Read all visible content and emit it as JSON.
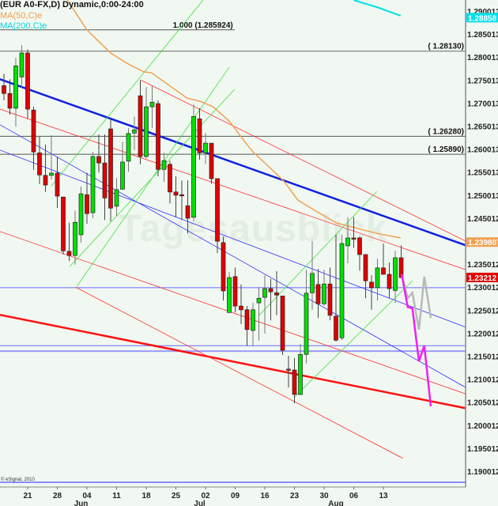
{
  "header": {
    "title": "(EUR A0-FX,D) Dynamic,0:00-24:00",
    "ma50": "MA(50,C)e",
    "ma200": "MA(200,C)e"
  },
  "copyright": "© eSignal, 2010",
  "watermark": "Tagesausblick",
  "chart_data": {
    "type": "candlestick",
    "symbol": "EUR A0-FX",
    "interval": "D",
    "ylim": [
      1.1865,
      1.2924
    ],
    "grid": false,
    "colors": {
      "up": "#00e000",
      "down": "#e00000",
      "background": "#f1f8f1",
      "ma50": "#f0a050",
      "ma200": "#00e0e8"
    },
    "y_ticks": [
      "1.290013",
      "1.285013",
      "1.280013",
      "1.275013",
      "1.270013",
      "1.265013",
      "1.260013",
      "1.255013",
      "1.250013",
      "1.245012",
      "1.235012",
      "1.230012",
      "1.225012",
      "1.220012",
      "1.215012",
      "1.210012",
      "1.205012",
      "1.200012",
      "1.195012",
      "1.190012"
    ],
    "x_ticks": [
      {
        "label": "21",
        "bar": 4
      },
      {
        "label": "28",
        "bar": 9
      },
      {
        "label": "04",
        "bar": 14
      },
      {
        "label": "11",
        "bar": 19
      },
      {
        "label": "18",
        "bar": 24
      },
      {
        "label": "25",
        "bar": 29
      },
      {
        "label": "02",
        "bar": 34
      },
      {
        "label": "09",
        "bar": 39
      },
      {
        "label": "16",
        "bar": 44
      },
      {
        "label": "23",
        "bar": 49
      },
      {
        "label": "30",
        "bar": 54
      },
      {
        "label": "06",
        "bar": 59
      },
      {
        "label": "13",
        "bar": 64
      }
    ],
    "month_labels": [
      {
        "label": "Jun",
        "bar": 13
      },
      {
        "label": "Jul",
        "bar": 33
      },
      {
        "label": "Aug",
        "bar": 56
      }
    ],
    "price_labels": [
      {
        "text": "1.28858",
        "price": 1.28858,
        "color": "#00e0e8",
        "series": "MA(200,C)e"
      },
      {
        "text": "1.239807",
        "price": 1.239807,
        "color": "#f0a050",
        "series": "MA(50,C)e"
      },
      {
        "text": "1.23212",
        "price": 1.23212,
        "color": "#e00000",
        "series": "last"
      }
    ],
    "candles": [
      [
        1.2738,
        1.2764,
        1.2706,
        1.2721
      ],
      [
        1.2721,
        1.2752,
        1.2675,
        1.2689
      ],
      [
        1.2689,
        1.2799,
        1.2649,
        1.2781
      ],
      [
        1.2757,
        1.2826,
        1.2732,
        1.2809
      ],
      [
        1.2809,
        1.2817,
        1.2666,
        1.2687
      ],
      [
        1.2685,
        1.2692,
        1.2555,
        1.2594
      ],
      [
        1.2592,
        1.2627,
        1.2524,
        1.2544
      ],
      [
        1.2543,
        1.261,
        1.2507,
        1.2522
      ],
      [
        1.2543,
        1.263,
        1.2534,
        1.2548
      ],
      [
        1.2548,
        1.2584,
        1.2472,
        1.2498
      ],
      [
        1.2496,
        1.2496,
        1.2371,
        1.2379
      ],
      [
        1.2378,
        1.244,
        1.2357,
        1.2369
      ],
      [
        1.2369,
        1.2467,
        1.2349,
        1.2441
      ],
      [
        1.2414,
        1.2519,
        1.2397,
        1.2503
      ],
      [
        1.2501,
        1.2549,
        1.2438,
        1.246
      ],
      [
        1.2462,
        1.2594,
        1.245,
        1.2584
      ],
      [
        1.2584,
        1.2632,
        1.2549,
        1.257
      ],
      [
        1.257,
        1.2632,
        1.2446,
        1.2494
      ],
      [
        1.2644,
        1.2666,
        1.2443,
        1.2472
      ],
      [
        1.2476,
        1.2537,
        1.2455,
        1.2512
      ],
      [
        1.2513,
        1.2616,
        1.2512,
        1.2572
      ],
      [
        1.2574,
        1.2646,
        1.2551,
        1.2634
      ],
      [
        1.2635,
        1.2671,
        1.2598,
        1.2642
      ],
      [
        1.2716,
        1.275,
        1.2567,
        1.2584
      ],
      [
        1.2584,
        1.2735,
        1.258,
        1.2692
      ],
      [
        1.2692,
        1.2738,
        1.2646,
        1.2702
      ],
      [
        1.2699,
        1.2706,
        1.2541,
        1.2556
      ],
      [
        1.2556,
        1.2592,
        1.2529,
        1.2575
      ],
      [
        1.2567,
        1.2575,
        1.2482,
        1.2507
      ],
      [
        1.2507,
        1.2541,
        1.2452,
        1.25
      ],
      [
        1.2501,
        1.2532,
        1.2446,
        1.25
      ],
      [
        1.2477,
        1.2532,
        1.2417,
        1.245
      ],
      [
        1.2452,
        1.2697,
        1.2443,
        1.2671
      ],
      [
        1.2666,
        1.2689,
        1.2577,
        1.2592
      ],
      [
        1.2592,
        1.2635,
        1.2568,
        1.2613
      ],
      [
        1.2613,
        1.2613,
        1.2525,
        1.2536
      ],
      [
        1.2536,
        1.2536,
        1.2374,
        1.24
      ],
      [
        1.2397,
        1.241,
        1.2271,
        1.2292
      ],
      [
        1.2245,
        1.2333,
        1.2245,
        1.2321
      ],
      [
        1.2323,
        1.2343,
        1.2245,
        1.2259
      ],
      [
        1.2259,
        1.2306,
        1.222,
        1.2251
      ],
      [
        1.2251,
        1.2259,
        1.2173,
        1.2208
      ],
      [
        1.2206,
        1.2266,
        1.2172,
        1.2251
      ],
      [
        1.2266,
        1.23,
        1.2184,
        1.2276
      ],
      [
        1.2278,
        1.2326,
        1.2199,
        1.2297
      ],
      [
        1.2297,
        1.2318,
        1.2228,
        1.229
      ],
      [
        1.2288,
        1.2335,
        1.2239,
        1.2283
      ],
      [
        1.2281,
        1.2281,
        1.2153,
        1.2163
      ],
      [
        1.2122,
        1.2151,
        1.2082,
        1.2121
      ],
      [
        1.212,
        1.2146,
        1.2048,
        1.2067
      ],
      [
        1.2067,
        1.2177,
        1.2065,
        1.2154
      ],
      [
        1.2154,
        1.2338,
        1.2134,
        1.2287
      ],
      [
        1.2288,
        1.24,
        1.2251,
        1.233
      ],
      [
        1.2306,
        1.234,
        1.2233,
        1.2264
      ],
      [
        1.2264,
        1.2338,
        1.2259,
        1.2307
      ],
      [
        1.2307,
        1.2343,
        1.2228,
        1.2239
      ],
      [
        1.2237,
        1.2414,
        1.2182,
        1.2185
      ],
      [
        1.219,
        1.2414,
        1.2185,
        1.2395
      ],
      [
        1.239,
        1.2452,
        1.2352,
        1.2407
      ],
      [
        1.2407,
        1.2452,
        1.2386,
        1.2406
      ],
      [
        1.2407,
        1.241,
        1.2336,
        1.2371
      ],
      [
        1.2371,
        1.2371,
        1.2276,
        1.2314
      ],
      [
        1.2311,
        1.2326,
        1.2251,
        1.2299
      ],
      [
        1.2299,
        1.2362,
        1.2271,
        1.2342
      ],
      [
        1.2342,
        1.2395,
        1.2328,
        1.2328
      ],
      [
        1.2328,
        1.2354,
        1.2276,
        1.2297
      ],
      [
        1.2293,
        1.2379,
        1.2266,
        1.2364
      ],
      [
        1.2364,
        1.2391,
        1.2321,
        1.2321
      ]
    ],
    "ma50": [
      [
        10.7,
        1.2924
      ],
      [
        14,
        1.2859
      ],
      [
        18,
        1.2809
      ],
      [
        20.7,
        1.2787
      ],
      [
        23.6,
        1.2768
      ],
      [
        24.9,
        1.2766
      ],
      [
        27.7,
        1.274
      ],
      [
        30.9,
        1.2711
      ],
      [
        33.1,
        1.2704
      ],
      [
        35.3,
        1.2692
      ],
      [
        38,
        1.2661
      ],
      [
        40.7,
        1.2615
      ],
      [
        42,
        1.2594
      ],
      [
        46,
        1.2546
      ],
      [
        47.3,
        1.2529
      ],
      [
        49.6,
        1.2489
      ],
      [
        52.7,
        1.2465
      ],
      [
        56,
        1.244
      ],
      [
        59.3,
        1.2429
      ],
      [
        62.9,
        1.2417
      ],
      [
        66.9,
        1.2407
      ]
    ],
    "ma200": [
      [
        59,
        1.2924
      ],
      [
        63.3,
        1.2907
      ],
      [
        66.9,
        1.289
      ]
    ],
    "horizontal_lines": [
      {
        "price": 1.285924,
        "color": "#555555",
        "width": 1,
        "end_bar": 38.9,
        "label": "1.000 (1.285924)"
      },
      {
        "price": 1.2813,
        "color": "#777777",
        "width": 1.2,
        "label": "( 1.28130)"
      },
      {
        "price": 1.2628,
        "color": "#555555",
        "width": 1,
        "label": "( 1.26280)"
      },
      {
        "price": 1.2589,
        "color": "#555555",
        "width": 1,
        "label": "( 1.25890)"
      },
      {
        "price": 1.2299,
        "color": "#6a6aff",
        "width": 1,
        "label": ""
      },
      {
        "price": 1.2173,
        "color": "#6a6aff",
        "width": 1,
        "label": ""
      },
      {
        "price": 1.2161,
        "color": "#9a9aff",
        "width": 2,
        "label": ""
      },
      {
        "price": 1.1876,
        "color": "#2020ff",
        "width": 1,
        "label": ""
      }
    ],
    "trendlines": [
      {
        "from": [
          -0.67,
          1.2752
        ],
        "to": [
          77.9,
          1.2391
        ],
        "color": "#1020e0",
        "width": 2.5
      },
      {
        "from": [
          -0.67,
          1.224
        ],
        "to": [
          77.9,
          1.2037
        ],
        "color": "#ff1010",
        "width": 2.5
      },
      {
        "from": [
          -0.67,
          1.2687
        ],
        "to": [
          77.9,
          1.2338
        ],
        "color": "#ff3030",
        "width": 0.8
      },
      {
        "from": [
          23.1,
          1.275
        ],
        "to": [
          77.9,
          1.24
        ],
        "color": "#ff3030",
        "width": 0.8
      },
      {
        "from": [
          -0.67,
          1.2421
        ],
        "to": [
          77.9,
          1.2068
        ],
        "color": "#ff3030",
        "width": 0.8
      },
      {
        "from": [
          12.1,
          1.23
        ],
        "to": [
          67.3,
          1.1928
        ],
        "color": "#ff3030",
        "width": 0.8
      },
      {
        "from": [
          -0.67,
          1.2653
        ],
        "to": [
          77.9,
          1.2082
        ],
        "color": "#3030ff",
        "width": 0.8
      },
      {
        "from": [
          -0.67,
          1.2598
        ],
        "to": [
          77.9,
          1.2213
        ],
        "color": "#3030ff",
        "width": 0.8
      },
      {
        "from": [
          8,
          1.252
        ],
        "to": [
          33.6,
          1.2924
        ],
        "color": "#40e040",
        "width": 0.8
      },
      {
        "from": [
          12.3,
          1.2302
        ],
        "to": [
          38,
          1.2778
        ],
        "color": "#40e040",
        "width": 0.8
      },
      {
        "from": [
          11.1,
          1.2345
        ],
        "to": [
          38.9,
          1.273
        ],
        "color": "#40e040",
        "width": 0.8
      },
      {
        "from": [
          42.9,
          1.2237
        ],
        "to": [
          62.9,
          1.2508
        ],
        "color": "#40e040",
        "width": 0.8
      },
      {
        "from": [
          48.9,
          1.206
        ],
        "to": [
          68.9,
          1.2314
        ],
        "color": "#40e040",
        "width": 0.8
      }
    ],
    "projections": [
      {
        "color": "#b8b8b8",
        "width": 2.5,
        "points": [
          [
            67.1,
            1.2328
          ],
          [
            68.1,
            1.2276
          ],
          [
            68.9,
            1.2288
          ],
          [
            70,
            1.2208
          ],
          [
            70.9,
            1.2323
          ],
          [
            72,
            1.2233
          ]
        ]
      },
      {
        "color": "#f020f0",
        "width": 2.5,
        "points": [
          [
            67.1,
            1.2328
          ],
          [
            68.1,
            1.2257
          ],
          [
            68.9,
            1.2254
          ],
          [
            70,
            1.2139
          ],
          [
            70.9,
            1.2173
          ],
          [
            72,
            1.2041
          ]
        ]
      }
    ]
  }
}
